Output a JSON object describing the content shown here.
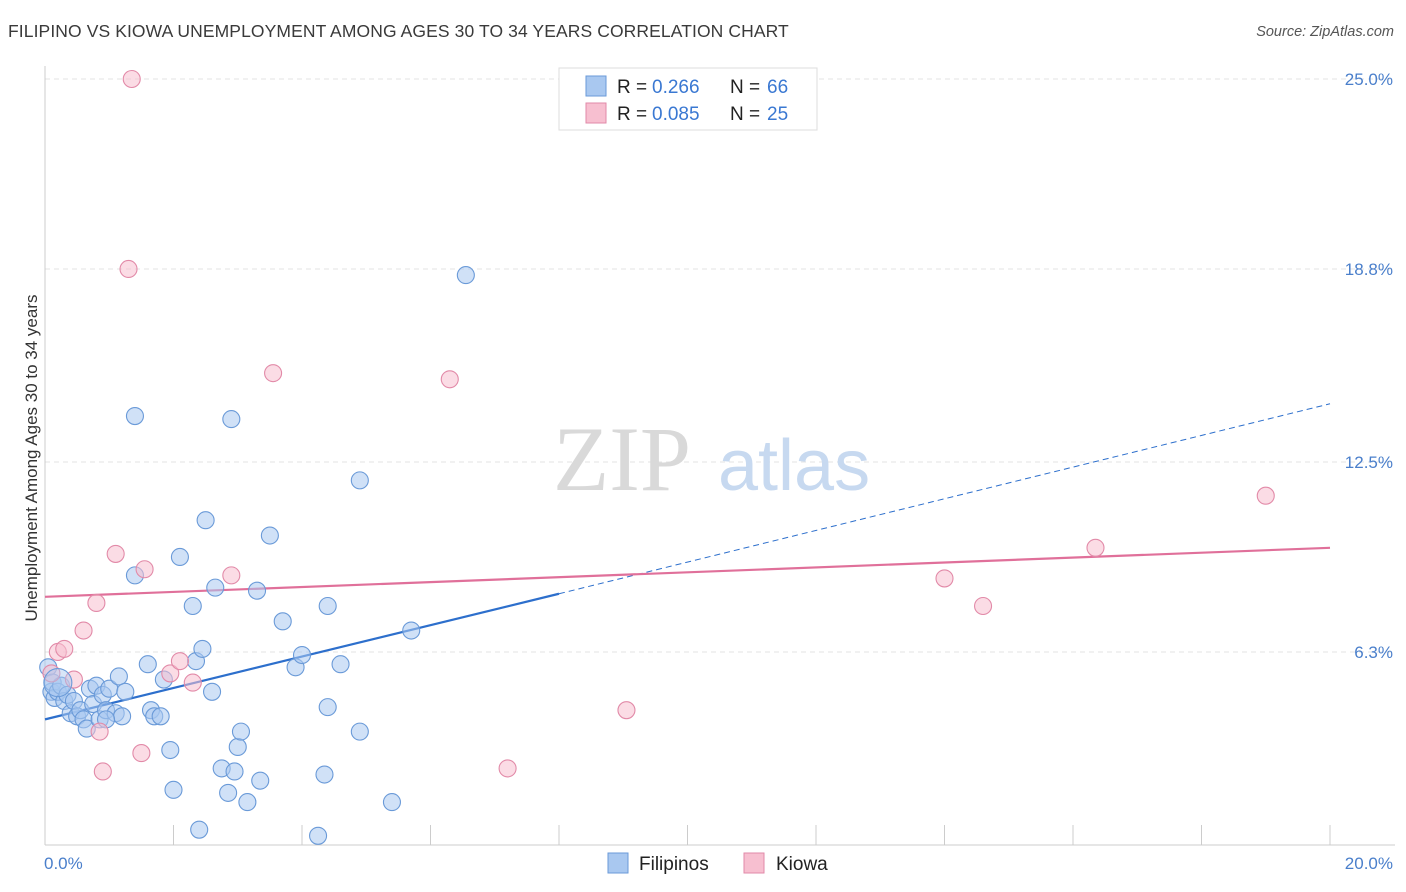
{
  "header": {
    "title": "FILIPINO VS KIOWA UNEMPLOYMENT AMONG AGES 30 TO 34 YEARS CORRELATION CHART",
    "source": "Source: ZipAtlas.com"
  },
  "watermark": {
    "zip": "ZIP",
    "atlas": "atlas"
  },
  "colors": {
    "filipinos_fill": "#a9c8f0",
    "filipinos_stroke": "#6a9ad8",
    "filipinos_line": "#2d6fcc",
    "kiowa_fill": "#f7bfd0",
    "kiowa_stroke": "#e28aa8",
    "kiowa_line": "#e0709a",
    "tick_text": "#4a7fcb"
  },
  "legend": {
    "rows": [
      {
        "r_label": "R =",
        "r_value": "0.266",
        "n_label": "N =",
        "n_value": "66"
      },
      {
        "r_label": "R =",
        "r_value": "0.085",
        "n_label": "N =",
        "n_value": "25"
      }
    ]
  },
  "bottom_legend": [
    "Filipinos",
    "Kiowa"
  ],
  "chart_data": {
    "type": "scatter",
    "title": "FILIPINO VS KIOWA UNEMPLOYMENT AMONG AGES 30 TO 34 YEARS CORRELATION CHART",
    "xlabel": "",
    "ylabel": "Unemployment Among Ages 30 to 34 years",
    "xlim": [
      0,
      20
    ],
    "ylim": [
      0,
      25
    ],
    "x_tick_labels": [
      "0.0%",
      "20.0%"
    ],
    "y_ticks": [
      6.3,
      12.5,
      18.8,
      25.0
    ],
    "y_tick_labels": [
      "6.3%",
      "12.5%",
      "18.8%",
      "25.0%"
    ],
    "grid": true,
    "legend_position": "top-center",
    "series": [
      {
        "name": "Filipinos",
        "points": [
          [
            0.05,
            5.8
          ],
          [
            0.1,
            5.0
          ],
          [
            0.12,
            5.3
          ],
          [
            0.15,
            4.8
          ],
          [
            0.2,
            5.0
          ],
          [
            0.25,
            5.2
          ],
          [
            0.3,
            4.7
          ],
          [
            0.35,
            4.9
          ],
          [
            0.4,
            4.3
          ],
          [
            0.45,
            4.7
          ],
          [
            0.5,
            4.2
          ],
          [
            0.55,
            4.4
          ],
          [
            0.6,
            4.1
          ],
          [
            0.65,
            3.8
          ],
          [
            0.7,
            5.1
          ],
          [
            0.75,
            4.6
          ],
          [
            0.8,
            5.2
          ],
          [
            0.85,
            4.1
          ],
          [
            0.9,
            4.9
          ],
          [
            0.95,
            4.4
          ],
          [
            1.0,
            5.1
          ],
          [
            1.1,
            4.3
          ],
          [
            1.15,
            5.5
          ],
          [
            1.2,
            4.2
          ],
          [
            1.25,
            5.0
          ],
          [
            1.4,
            8.8
          ],
          [
            1.6,
            5.9
          ],
          [
            1.65,
            4.4
          ],
          [
            1.7,
            4.2
          ],
          [
            1.8,
            4.2
          ],
          [
            1.85,
            5.4
          ],
          [
            1.95,
            3.1
          ],
          [
            2.0,
            1.8
          ],
          [
            2.1,
            9.4
          ],
          [
            2.3,
            7.8
          ],
          [
            2.35,
            6.0
          ],
          [
            2.45,
            6.4
          ],
          [
            2.5,
            10.6
          ],
          [
            2.6,
            5.0
          ],
          [
            2.65,
            8.4
          ],
          [
            2.75,
            2.5
          ],
          [
            2.85,
            1.7
          ],
          [
            2.95,
            2.4
          ],
          [
            3.0,
            3.2
          ],
          [
            3.05,
            3.7
          ],
          [
            3.15,
            1.4
          ],
          [
            3.3,
            8.3
          ],
          [
            3.35,
            2.1
          ],
          [
            3.5,
            10.1
          ],
          [
            3.7,
            7.3
          ],
          [
            3.9,
            5.8
          ],
          [
            4.0,
            6.2
          ],
          [
            4.25,
            0.3
          ],
          [
            4.35,
            2.3
          ],
          [
            4.4,
            4.5
          ],
          [
            4.4,
            7.8
          ],
          [
            4.6,
            5.9
          ],
          [
            4.9,
            3.7
          ],
          [
            4.9,
            11.9
          ],
          [
            5.4,
            1.4
          ],
          [
            5.7,
            7.0
          ],
          [
            6.55,
            18.6
          ],
          [
            2.4,
            0.5
          ],
          [
            1.4,
            14.0
          ],
          [
            0.95,
            4.1
          ],
          [
            2.9,
            13.9
          ]
        ]
      },
      {
        "name": "Kiowa",
        "points": [
          [
            0.1,
            5.6
          ],
          [
            0.2,
            6.3
          ],
          [
            0.3,
            6.4
          ],
          [
            0.45,
            5.4
          ],
          [
            0.6,
            7.0
          ],
          [
            0.8,
            7.9
          ],
          [
            0.85,
            3.7
          ],
          [
            0.9,
            2.4
          ],
          [
            1.1,
            9.5
          ],
          [
            1.3,
            18.8
          ],
          [
            1.35,
            25.0
          ],
          [
            1.5,
            3.0
          ],
          [
            1.55,
            9.0
          ],
          [
            1.95,
            5.6
          ],
          [
            2.1,
            6.0
          ],
          [
            2.3,
            5.3
          ],
          [
            2.9,
            8.8
          ],
          [
            3.55,
            15.4
          ],
          [
            6.3,
            15.2
          ],
          [
            7.2,
            2.5
          ],
          [
            9.05,
            4.4
          ],
          [
            14.0,
            8.7
          ],
          [
            14.6,
            7.8
          ],
          [
            16.35,
            9.7
          ],
          [
            19.0,
            11.4
          ]
        ]
      }
    ],
    "trend_lines": [
      {
        "series": "Filipinos",
        "x": [
          0,
          8.0
        ],
        "y": [
          4.1,
          8.2
        ],
        "dashed_x": [
          8.0,
          20.0
        ],
        "dashed_y": [
          8.2,
          14.4
        ]
      },
      {
        "series": "Kiowa",
        "x": [
          0,
          20
        ],
        "y": [
          8.1,
          9.7
        ]
      }
    ]
  }
}
